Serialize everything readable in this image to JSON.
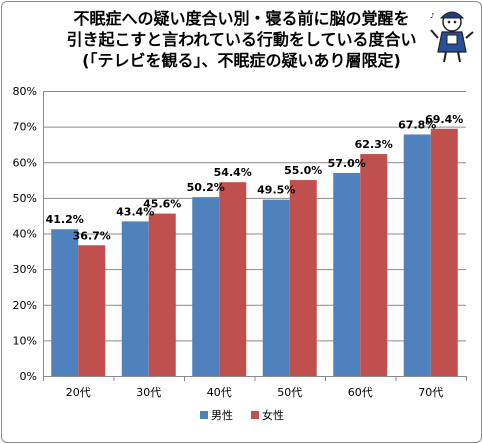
{
  "title_lines": [
    "不眠症への疑い度合い別・寝る前に脳の覚醒を",
    "引き起こすと言われている行動をしている度合い",
    "(「テレビを観る」、不眠症の疑いあり層限定)"
  ],
  "chart_data": {
    "type": "bar",
    "title": "不眠症への疑い度合い別・寝る前に脳の覚醒を引き起こすと言われている行動をしている度合い(「テレビを観る」、不眠症の疑いあり層限定)",
    "categories": [
      "20代",
      "30代",
      "40代",
      "50代",
      "60代",
      "70代"
    ],
    "series": [
      {
        "name": "男性",
        "values": [
          41.2,
          43.4,
          50.2,
          49.5,
          57.0,
          67.8
        ],
        "labels": [
          "41.2%",
          "43.4%",
          "50.2%",
          "49.5%",
          "57.0%",
          "67.8%"
        ],
        "color": "#4f81bd"
      },
      {
        "name": "女性",
        "values": [
          36.7,
          45.6,
          54.4,
          55.0,
          62.3,
          69.4
        ],
        "labels": [
          "36.7%",
          "45.6%",
          "54.4%",
          "55.0%",
          "62.3%",
          "69.4%"
        ],
        "color": "#c0504d"
      }
    ],
    "ylim": [
      0,
      80
    ],
    "yticks": [
      0,
      10,
      20,
      30,
      40,
      50,
      60,
      70,
      80
    ],
    "ytick_labels": [
      "0%",
      "10%",
      "20%",
      "30%",
      "40%",
      "50%",
      "60%",
      "70%",
      "80%"
    ],
    "xlabel": "",
    "ylabel": "",
    "grid": true,
    "legend": "bottom"
  },
  "colors": {
    "grid": "#8a8a8a",
    "axis": "#8a8a8a"
  }
}
